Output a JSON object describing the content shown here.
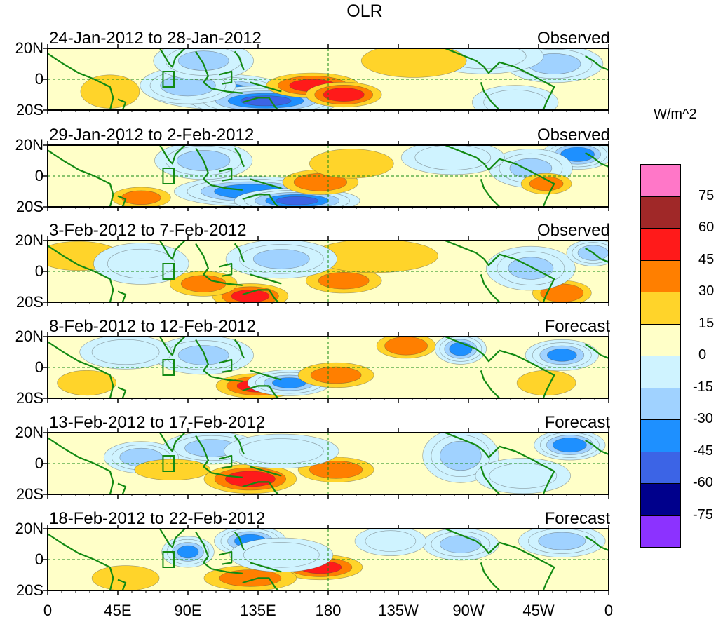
{
  "chart_data": {
    "type": "heatmap",
    "title": "OLR",
    "units": "W/m^2",
    "y_ticks": [
      "20N",
      "0",
      "20S"
    ],
    "x_ticks": [
      "0",
      "45E",
      "90E",
      "135E",
      "180",
      "135W",
      "90W",
      "45W",
      "0"
    ],
    "xlim_deg": [
      0,
      360
    ],
    "ylim_deg": [
      -20,
      20
    ],
    "colorbar": {
      "ticks": [
        "75",
        "60",
        "45",
        "30",
        "15",
        "0",
        "-15",
        "-30",
        "-45",
        "-60",
        "-75"
      ],
      "colors": [
        "#ff77c8",
        "#a02828",
        "#ff1a1a",
        "#ff7f00",
        "#ffd42a",
        "#ffffc8",
        "#cff3ff",
        "#a0d2ff",
        "#1e90ff",
        "#3c64e6",
        "#00008c",
        "#8c32ff"
      ]
    },
    "panels": [
      {
        "title": "24-Jan-2012 to 28-Jan-2012",
        "status": "Observed",
        "blobs": [
          {
            "lon": 110,
            "lat": -8,
            "v": -55,
            "rx": 28,
            "ry": 7
          },
          {
            "lon": 140,
            "lat": -14,
            "v": -60,
            "rx": 30,
            "ry": 6
          },
          {
            "lon": 90,
            "lat": -4,
            "v": -40,
            "rx": 18,
            "ry": 7
          },
          {
            "lon": 100,
            "lat": 12,
            "v": -30,
            "rx": 18,
            "ry": 7
          },
          {
            "lon": 170,
            "lat": -4,
            "v": 45,
            "rx": 22,
            "ry": 6
          },
          {
            "lon": 190,
            "lat": -10,
            "v": 50,
            "rx": 18,
            "ry": 6
          },
          {
            "lon": 325,
            "lat": 10,
            "v": -35,
            "rx": 18,
            "ry": 7
          },
          {
            "lon": 280,
            "lat": 15,
            "v": -20,
            "rx": 20,
            "ry": 6
          },
          {
            "lon": 300,
            "lat": -15,
            "v": -25,
            "rx": 15,
            "ry": 6
          },
          {
            "lon": 40,
            "lat": -8,
            "v": 20,
            "rx": 14,
            "ry": 8
          },
          {
            "lon": 235,
            "lat": 12,
            "v": 15,
            "rx": 25,
            "ry": 8
          }
        ]
      },
      {
        "title": "29-Jan-2012 to 2-Feb-2012",
        "status": "Observed",
        "blobs": [
          {
            "lon": 130,
            "lat": -10,
            "v": -55,
            "rx": 30,
            "ry": 6
          },
          {
            "lon": 160,
            "lat": -16,
            "v": -60,
            "rx": 25,
            "ry": 5
          },
          {
            "lon": 100,
            "lat": 10,
            "v": -35,
            "rx": 18,
            "ry": 7
          },
          {
            "lon": 175,
            "lat": -4,
            "v": 35,
            "rx": 18,
            "ry": 6
          },
          {
            "lon": 195,
            "lat": 8,
            "v": 20,
            "rx": 20,
            "ry": 7
          },
          {
            "lon": 340,
            "lat": 14,
            "v": -55,
            "rx": 14,
            "ry": 6
          },
          {
            "lon": 310,
            "lat": 5,
            "v": -30,
            "rx": 15,
            "ry": 7
          },
          {
            "lon": 320,
            "lat": -5,
            "v": 30,
            "rx": 12,
            "ry": 5
          },
          {
            "lon": 60,
            "lat": -14,
            "v": 30,
            "rx": 14,
            "ry": 5
          },
          {
            "lon": 260,
            "lat": 12,
            "v": -25,
            "rx": 18,
            "ry": 6
          }
        ]
      },
      {
        "title": "3-Feb-2012 to 7-Feb-2012",
        "status": "Observed",
        "blobs": [
          {
            "lon": 130,
            "lat": -16,
            "v": 45,
            "rx": 18,
            "ry": 6
          },
          {
            "lon": 100,
            "lat": -8,
            "v": 30,
            "rx": 16,
            "ry": 6
          },
          {
            "lon": 190,
            "lat": -6,
            "v": 30,
            "rx": 18,
            "ry": 6
          },
          {
            "lon": 210,
            "lat": 10,
            "v": 15,
            "rx": 30,
            "ry": 8
          },
          {
            "lon": 150,
            "lat": 8,
            "v": -30,
            "rx": 20,
            "ry": 7
          },
          {
            "lon": 330,
            "lat": -14,
            "v": 40,
            "rx": 14,
            "ry": 6
          },
          {
            "lon": 310,
            "lat": 2,
            "v": -30,
            "rx": 16,
            "ry": 8
          },
          {
            "lon": 350,
            "lat": 12,
            "v": -40,
            "rx": 10,
            "ry": 5
          },
          {
            "lon": 20,
            "lat": 10,
            "v": 15,
            "rx": 20,
            "ry": 7
          },
          {
            "lon": 60,
            "lat": 5,
            "v": -20,
            "rx": 16,
            "ry": 7
          }
        ]
      },
      {
        "title": "8-Feb-2012 to 12-Feb-2012",
        "status": "Forecast",
        "blobs": [
          {
            "lon": 135,
            "lat": -12,
            "v": 45,
            "rx": 20,
            "ry": 6
          },
          {
            "lon": 155,
            "lat": -10,
            "v": -45,
            "rx": 16,
            "ry": 5
          },
          {
            "lon": 185,
            "lat": -5,
            "v": 30,
            "rx": 18,
            "ry": 6
          },
          {
            "lon": 230,
            "lat": 14,
            "v": 40,
            "rx": 14,
            "ry": 6
          },
          {
            "lon": 265,
            "lat": 12,
            "v": -50,
            "rx": 10,
            "ry": 6
          },
          {
            "lon": 330,
            "lat": 8,
            "v": -45,
            "rx": 14,
            "ry": 6
          },
          {
            "lon": 320,
            "lat": -10,
            "v": 20,
            "rx": 14,
            "ry": 6
          },
          {
            "lon": 100,
            "lat": 8,
            "v": -30,
            "rx": 18,
            "ry": 7
          },
          {
            "lon": 50,
            "lat": 10,
            "v": -25,
            "rx": 16,
            "ry": 6
          },
          {
            "lon": 25,
            "lat": -10,
            "v": 25,
            "rx": 14,
            "ry": 6
          }
        ]
      },
      {
        "title": "13-Feb-2012 to 17-Feb-2012",
        "status": "Forecast",
        "blobs": [
          {
            "lon": 130,
            "lat": -10,
            "v": 50,
            "rx": 22,
            "ry": 7
          },
          {
            "lon": 185,
            "lat": -4,
            "v": 35,
            "rx": 18,
            "ry": 6
          },
          {
            "lon": 105,
            "lat": 10,
            "v": -35,
            "rx": 18,
            "ry": 6
          },
          {
            "lon": 150,
            "lat": 8,
            "v": -25,
            "rx": 20,
            "ry": 6
          },
          {
            "lon": 60,
            "lat": 4,
            "v": -40,
            "rx": 14,
            "ry": 6
          },
          {
            "lon": 80,
            "lat": -4,
            "v": 25,
            "rx": 18,
            "ry": 5
          },
          {
            "lon": 335,
            "lat": 12,
            "v": -55,
            "rx": 14,
            "ry": 6
          },
          {
            "lon": 265,
            "lat": 5,
            "v": -35,
            "rx": 14,
            "ry": 10
          },
          {
            "lon": 305,
            "lat": -8,
            "v": -20,
            "rx": 16,
            "ry": 6
          }
        ]
      },
      {
        "title": "18-Feb-2012 to 22-Feb-2012",
        "status": "Forecast",
        "blobs": [
          {
            "lon": 175,
            "lat": -5,
            "v": 45,
            "rx": 20,
            "ry": 6
          },
          {
            "lon": 130,
            "lat": -12,
            "v": 30,
            "rx": 22,
            "ry": 6
          },
          {
            "lon": 130,
            "lat": 12,
            "v": -50,
            "rx": 14,
            "ry": 6
          },
          {
            "lon": 90,
            "lat": 5,
            "v": -45,
            "rx": 10,
            "ry": 6
          },
          {
            "lon": 150,
            "lat": 3,
            "v": -25,
            "rx": 18,
            "ry": 6
          },
          {
            "lon": 265,
            "lat": 10,
            "v": -35,
            "rx": 14,
            "ry": 6
          },
          {
            "lon": 330,
            "lat": 12,
            "v": -35,
            "rx": 16,
            "ry": 6
          },
          {
            "lon": 220,
            "lat": 12,
            "v": -20,
            "rx": 12,
            "ry": 5
          },
          {
            "lon": 50,
            "lat": -12,
            "v": 15,
            "rx": 16,
            "ry": 6
          }
        ]
      }
    ]
  }
}
